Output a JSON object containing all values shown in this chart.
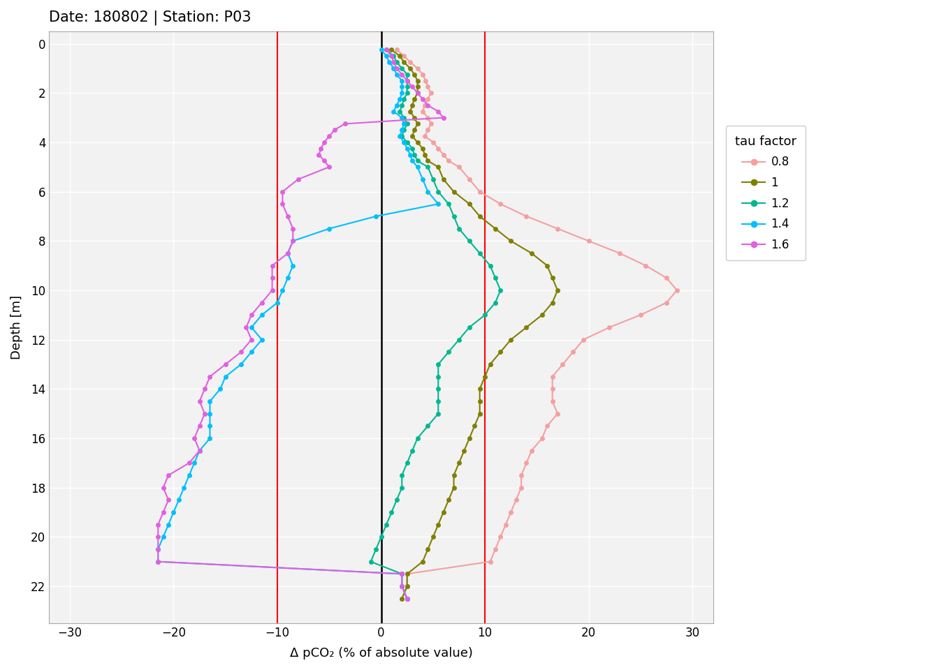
{
  "title": "Date: 180802 | Station: P03",
  "xlabel": "Δ pCO₂ (% of absolute value)",
  "ylabel": "Depth [m]",
  "xlim": [
    -32,
    32
  ],
  "ylim": [
    23.5,
    -0.5
  ],
  "xticks": [
    -30,
    -20,
    -10,
    0,
    10,
    20,
    30
  ],
  "yticks": [
    0,
    2,
    4,
    6,
    8,
    10,
    12,
    14,
    16,
    18,
    20,
    22
  ],
  "vlines_red": [
    -10,
    10
  ],
  "vline_black": 0,
  "background_color": "#ffffff",
  "panel_color": "#f2f2f2",
  "grid_color": "#ffffff",
  "legend_title": "tau factor",
  "series": [
    {
      "label": "0.8",
      "color": "#F4A0A0",
      "depth": [
        0.25,
        0.5,
        0.75,
        1.0,
        1.25,
        1.5,
        1.75,
        2.0,
        2.25,
        2.5,
        2.75,
        3.0,
        3.25,
        3.5,
        3.75,
        4.0,
        4.25,
        4.5,
        4.75,
        5.0,
        5.5,
        6.0,
        6.5,
        7.0,
        7.5,
        8.0,
        8.5,
        9.0,
        9.5,
        10.0,
        10.5,
        11.0,
        11.5,
        12.0,
        12.5,
        13.0,
        13.5,
        14.0,
        14.5,
        15.0,
        15.5,
        16.0,
        16.5,
        17.0,
        17.5,
        18.0,
        18.5,
        19.0,
        19.5,
        20.0,
        20.5,
        21.0,
        21.5,
        22.0,
        22.5
      ],
      "value": [
        1.5,
        2.2,
        2.8,
        3.5,
        4.0,
        4.3,
        4.5,
        4.8,
        4.5,
        4.2,
        4.0,
        4.5,
        4.8,
        4.5,
        4.2,
        5.0,
        5.5,
        6.0,
        6.5,
        7.5,
        8.5,
        9.5,
        11.5,
        14.0,
        17.0,
        20.0,
        23.0,
        25.5,
        27.5,
        28.5,
        27.5,
        25.0,
        22.0,
        19.5,
        18.5,
        17.5,
        16.5,
        16.5,
        16.5,
        17.0,
        16.0,
        15.5,
        14.5,
        14.0,
        13.5,
        13.5,
        13.0,
        12.5,
        12.0,
        11.5,
        11.0,
        10.5,
        2.5,
        2.5,
        2.0
      ]
    },
    {
      "label": "1",
      "color": "#7f7f00",
      "depth": [
        0.25,
        0.5,
        0.75,
        1.0,
        1.25,
        1.5,
        1.75,
        2.0,
        2.25,
        2.5,
        2.75,
        3.0,
        3.25,
        3.5,
        3.75,
        4.0,
        4.25,
        4.5,
        4.75,
        5.0,
        5.5,
        6.0,
        6.5,
        7.0,
        7.5,
        8.0,
        8.5,
        9.0,
        9.5,
        10.0,
        10.5,
        11.0,
        11.5,
        12.0,
        12.5,
        13.0,
        13.5,
        14.0,
        14.5,
        15.0,
        15.5,
        16.0,
        16.5,
        17.0,
        17.5,
        18.0,
        18.5,
        19.0,
        19.5,
        20.0,
        20.5,
        21.0,
        21.5,
        22.0,
        22.5
      ],
      "value": [
        1.0,
        1.8,
        2.2,
        2.8,
        3.2,
        3.5,
        3.5,
        3.5,
        3.2,
        3.0,
        2.8,
        3.2,
        3.5,
        3.2,
        3.0,
        3.5,
        4.0,
        4.2,
        4.5,
        5.5,
        6.0,
        7.0,
        8.5,
        9.5,
        11.0,
        12.5,
        14.5,
        16.0,
        16.5,
        17.0,
        16.5,
        15.5,
        14.0,
        12.5,
        11.5,
        10.5,
        10.0,
        9.5,
        9.5,
        9.5,
        9.0,
        8.5,
        8.0,
        7.5,
        7.0,
        7.0,
        6.5,
        6.0,
        5.5,
        5.0,
        4.5,
        4.0,
        2.5,
        2.5,
        2.0
      ]
    },
    {
      "label": "1.2",
      "color": "#00B890",
      "depth": [
        0.25,
        0.5,
        0.75,
        1.0,
        1.25,
        1.5,
        1.75,
        2.0,
        2.25,
        2.5,
        2.75,
        3.0,
        3.25,
        3.5,
        3.75,
        4.0,
        4.25,
        4.5,
        4.75,
        5.0,
        5.5,
        6.0,
        6.5,
        7.0,
        7.5,
        8.0,
        8.5,
        9.0,
        9.5,
        10.0,
        10.5,
        11.0,
        11.5,
        12.0,
        12.5,
        13.0,
        13.5,
        14.0,
        14.5,
        15.0,
        15.5,
        16.0,
        16.5,
        17.0,
        17.5,
        18.0,
        18.5,
        19.0,
        19.5,
        20.0,
        20.5,
        21.0,
        21.5,
        22.0,
        22.5
      ],
      "value": [
        0.5,
        1.2,
        1.5,
        2.0,
        2.5,
        2.5,
        2.5,
        2.5,
        2.2,
        2.0,
        1.8,
        2.2,
        2.5,
        2.2,
        2.0,
        2.5,
        3.0,
        3.2,
        3.5,
        4.5,
        5.0,
        5.5,
        6.5,
        7.0,
        7.5,
        8.5,
        9.5,
        10.5,
        11.0,
        11.5,
        11.0,
        10.0,
        8.5,
        7.5,
        6.5,
        5.5,
        5.5,
        5.5,
        5.5,
        5.5,
        4.5,
        3.5,
        3.0,
        2.5,
        2.0,
        2.0,
        1.5,
        1.0,
        0.5,
        0.0,
        -0.5,
        -1.0,
        2.0,
        2.0,
        2.5
      ]
    },
    {
      "label": "1.4",
      "color": "#00BFFF",
      "depth": [
        0.25,
        0.5,
        0.75,
        1.0,
        1.25,
        1.5,
        1.75,
        2.0,
        2.25,
        2.5,
        2.75,
        3.0,
        3.25,
        3.5,
        3.75,
        4.0,
        4.25,
        4.5,
        4.75,
        5.0,
        5.5,
        6.0,
        6.5,
        7.0,
        7.5,
        8.0,
        8.5,
        9.0,
        9.5,
        10.0,
        10.5,
        11.0,
        11.5,
        12.0,
        12.5,
        13.0,
        13.5,
        14.0,
        14.5,
        15.0,
        15.5,
        16.0,
        16.5,
        17.0,
        17.5,
        18.0,
        18.5,
        19.0,
        19.5,
        20.0,
        20.5,
        21.0,
        21.5,
        22.0,
        22.5
      ],
      "value": [
        0.0,
        0.5,
        0.8,
        1.2,
        1.5,
        2.0,
        2.0,
        2.0,
        1.8,
        1.5,
        1.2,
        2.0,
        2.2,
        2.0,
        1.8,
        2.2,
        2.5,
        2.8,
        3.0,
        3.5,
        4.0,
        4.5,
        5.5,
        -0.5,
        -5.0,
        -8.5,
        -9.0,
        -8.5,
        -9.0,
        -9.5,
        -10.0,
        -11.5,
        -12.5,
        -11.5,
        -12.5,
        -13.5,
        -15.0,
        -15.5,
        -16.5,
        -16.5,
        -16.5,
        -16.5,
        -17.5,
        -18.0,
        -18.5,
        -19.0,
        -19.5,
        -20.0,
        -20.5,
        -21.0,
        -21.5,
        -21.5,
        2.0,
        2.0,
        2.5
      ]
    },
    {
      "label": "1.6",
      "color": "#E060E0",
      "depth": [
        0.25,
        0.5,
        0.75,
        1.0,
        1.25,
        1.5,
        1.75,
        2.0,
        2.25,
        2.5,
        2.75,
        3.0,
        3.25,
        3.5,
        3.75,
        4.0,
        4.25,
        4.5,
        4.75,
        5.0,
        5.5,
        6.0,
        6.5,
        7.0,
        7.5,
        8.0,
        8.5,
        9.0,
        9.5,
        10.0,
        10.5,
        11.0,
        11.5,
        12.0,
        12.5,
        13.0,
        13.5,
        14.0,
        14.5,
        15.0,
        15.5,
        16.0,
        16.5,
        17.0,
        17.5,
        18.0,
        18.5,
        19.0,
        19.5,
        20.0,
        20.5,
        21.0,
        21.5,
        22.0,
        22.5
      ],
      "value": [
        0.5,
        1.0,
        1.2,
        1.5,
        2.0,
        2.5,
        3.0,
        3.5,
        4.0,
        4.5,
        5.5,
        6.0,
        -3.5,
        -4.5,
        -5.0,
        -5.5,
        -5.8,
        -6.0,
        -5.5,
        -5.0,
        -8.0,
        -9.5,
        -9.5,
        -9.0,
        -8.5,
        -8.5,
        -9.0,
        -10.5,
        -10.5,
        -10.5,
        -11.5,
        -12.5,
        -13.0,
        -12.5,
        -13.5,
        -15.0,
        -16.5,
        -17.0,
        -17.5,
        -17.0,
        -17.5,
        -18.0,
        -17.5,
        -18.5,
        -20.5,
        -21.0,
        -20.5,
        -21.0,
        -21.5,
        -21.5,
        -21.5,
        -21.5,
        2.0,
        2.0,
        2.5
      ]
    }
  ]
}
